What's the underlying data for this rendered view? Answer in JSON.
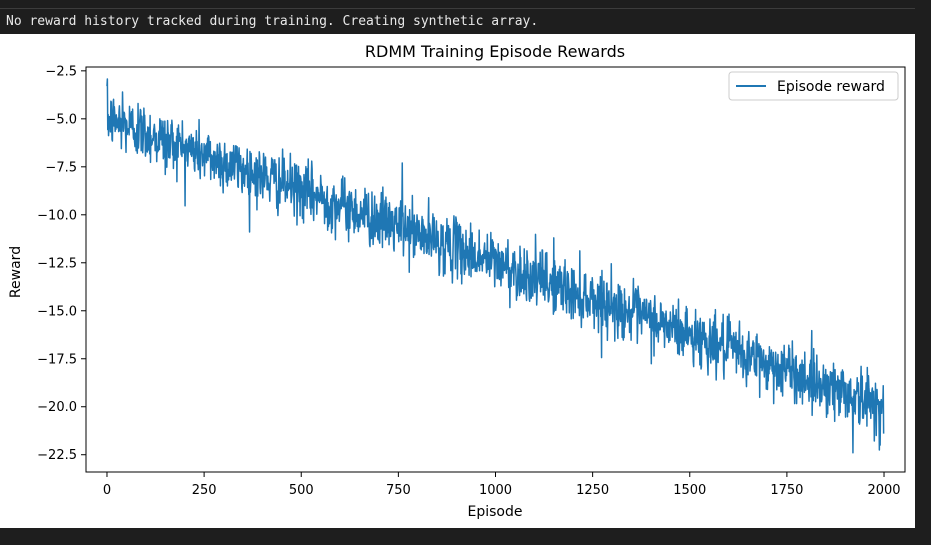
{
  "console": {
    "message": "No reward history tracked during training. Creating synthetic array."
  },
  "colors": {
    "background": "#1e1e1e",
    "console_text": "#e8e8e8",
    "series": "#1f77b4"
  },
  "chart_data": {
    "type": "line",
    "title": "RDMM Training Episode Rewards",
    "xlabel": "Episode",
    "ylabel": "Reward",
    "xlim": [
      -54,
      2054
    ],
    "ylim": [
      -23.4,
      -2.3
    ],
    "xticks": [
      0,
      250,
      500,
      750,
      1000,
      1250,
      1500,
      1750,
      2000
    ],
    "yticks": [
      -2.5,
      -5.0,
      -7.5,
      -10.0,
      -12.5,
      -15.0,
      -17.5,
      -20.0,
      -22.5
    ],
    "ytick_labels": [
      "−2.5",
      "−5.0",
      "−7.5",
      "−10.0",
      "−12.5",
      "−15.0",
      "−17.5",
      "−20.0",
      "−22.5"
    ],
    "legend": {
      "position": "top-right",
      "entries": [
        "Episode reward"
      ]
    },
    "grid": false,
    "series": [
      {
        "name": "Episode reward",
        "color": "#1f77b4",
        "trend": {
          "x": [
            0,
            2000
          ],
          "y": [
            -5.0,
            -20.0
          ]
        },
        "noise_std": 0.75,
        "episodes": 2000,
        "x": [
          0,
          5,
          40,
          80,
          120,
          150,
          200,
          300,
          400,
          500,
          600,
          700,
          760,
          800,
          900,
          1000,
          1100,
          1150,
          1200,
          1250,
          1300,
          1400,
          1500,
          1600,
          1700,
          1750,
          1800,
          1880,
          1920,
          1980,
          2000
        ],
        "y": [
          -3.3,
          -5.5,
          -3.6,
          -4.2,
          -5.6,
          -7.9,
          -6.8,
          -7.6,
          -8.6,
          -8.9,
          -9.7,
          -10.5,
          -7.3,
          -10.8,
          -11.4,
          -11.8,
          -13.3,
          -11.2,
          -15.4,
          -13.6,
          -14.6,
          -14.9,
          -16.3,
          -16.9,
          -19.1,
          -17.5,
          -18.7,
          -19.6,
          -22.4,
          -21.5,
          -20.1
        ]
      }
    ]
  }
}
